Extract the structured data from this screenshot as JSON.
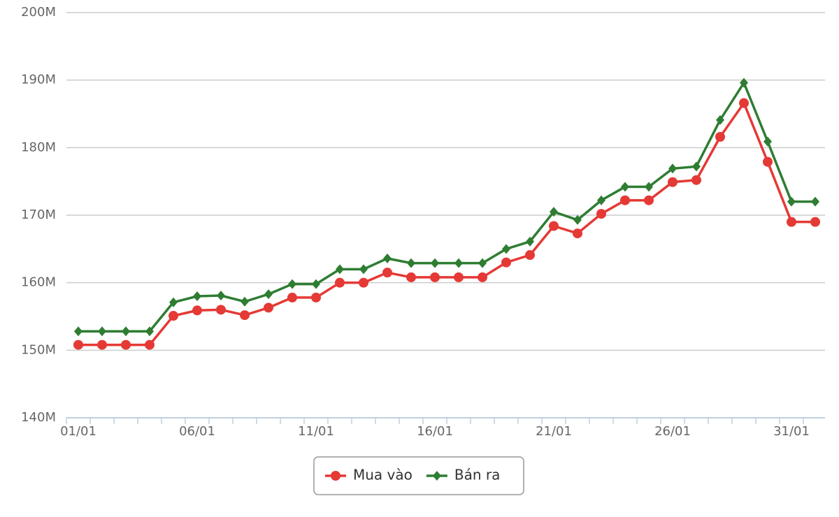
{
  "chart_data": {
    "type": "line",
    "categories": [
      "01/01",
      null,
      null,
      null,
      null,
      "06/01",
      null,
      null,
      null,
      null,
      "11/01",
      null,
      null,
      null,
      null,
      "16/01",
      null,
      null,
      null,
      null,
      "21/01",
      null,
      null,
      null,
      null,
      "26/01",
      null,
      null,
      null,
      null,
      "31/01",
      null
    ],
    "series": [
      {
        "name": "Mua vào",
        "color": "#e53935",
        "marker": "circle",
        "values": [
          150.8,
          150.8,
          150.8,
          150.8,
          155.1,
          155.9,
          156.0,
          155.2,
          156.3,
          157.8,
          157.8,
          160.0,
          160.0,
          161.5,
          160.8,
          160.8,
          160.8,
          160.8,
          163.0,
          164.1,
          168.4,
          167.3,
          170.2,
          172.2,
          172.2,
          174.9,
          175.2,
          181.6,
          186.6,
          177.9,
          169.0,
          169.0
        ]
      },
      {
        "name": "Bán ra",
        "color": "#2e7d32",
        "marker": "diamond",
        "values": [
          152.8,
          152.8,
          152.8,
          152.8,
          157.1,
          158.0,
          158.1,
          157.2,
          158.3,
          159.8,
          159.8,
          162.0,
          162.0,
          163.6,
          162.9,
          162.9,
          162.9,
          162.9,
          165.0,
          166.1,
          170.5,
          169.3,
          172.2,
          174.2,
          174.2,
          176.9,
          177.2,
          184.1,
          189.6,
          180.9,
          172.0,
          172.0
        ]
      }
    ],
    "ylim": [
      140,
      200
    ],
    "yticks": [
      {
        "value": 140,
        "label": "140M"
      },
      {
        "value": 150,
        "label": "150M"
      },
      {
        "value": 160,
        "label": "160M"
      },
      {
        "value": 170,
        "label": "170M"
      },
      {
        "value": 180,
        "label": "180M"
      },
      {
        "value": 190,
        "label": "190M"
      },
      {
        "value": 200,
        "label": "200M"
      }
    ],
    "grid": true,
    "legend": "bottom"
  }
}
